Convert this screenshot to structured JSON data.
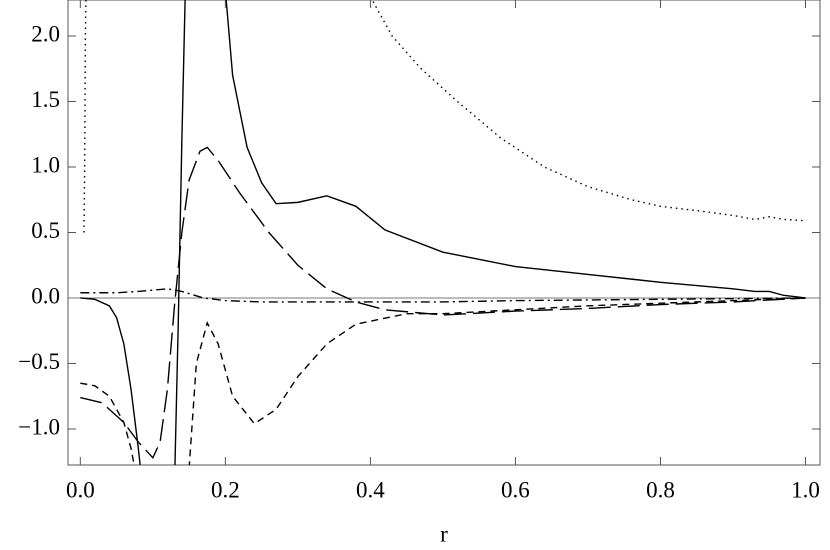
{
  "chart_data": {
    "type": "line",
    "x_label": "r",
    "xlim": [
      -0.017,
      1.02
    ],
    "ylim": [
      -1.275,
      2.275
    ],
    "xticks": [
      {
        "value": 0,
        "label": "0.0"
      },
      {
        "value": 0.2,
        "label": "0.2"
      },
      {
        "value": 0.4,
        "label": "0.4"
      },
      {
        "value": 0.6,
        "label": "0.6"
      },
      {
        "value": 0.8,
        "label": "0.8"
      },
      {
        "value": 1,
        "label": "1.0"
      }
    ],
    "yticks": [
      {
        "value": -1,
        "label": "−1.0"
      },
      {
        "value": -0.5,
        "label": "−0.5"
      },
      {
        "value": 0,
        "label": "0.0"
      },
      {
        "value": 0.5,
        "label": "0.5"
      },
      {
        "value": 1,
        "label": "1.0"
      },
      {
        "value": 1.5,
        "label": "1.5"
      },
      {
        "value": 2,
        "label": "2.0"
      }
    ],
    "series": [
      {
        "color": "#000000",
        "dash": "solid",
        "x": [
          0,
          0.02,
          0.04,
          0.05,
          0.06,
          0.07,
          0.08,
          0.085,
          0.1,
          0.13,
          0.135,
          0.14,
          0.145,
          0.17,
          0.2,
          0.21,
          0.23,
          0.25,
          0.27,
          0.3,
          0.34,
          0.38,
          0.42,
          0.5,
          0.6,
          0.7,
          0.8,
          0.9,
          0.93,
          0.95,
          0.97,
          1.0
        ],
        "values": [
          0,
          -0.01,
          -0.06,
          -0.15,
          -0.35,
          -0.7,
          -1.15,
          -1.4,
          null,
          -1.4,
          -0.2,
          1.2,
          2.4,
          null,
          2.35,
          1.7,
          1.15,
          0.88,
          0.72,
          0.73,
          0.78,
          0.7,
          0.52,
          0.35,
          0.24,
          0.18,
          0.12,
          0.07,
          0.05,
          0.05,
          0.02,
          0
        ]
      },
      {
        "color": "#000000",
        "dash": "longdash",
        "x": [
          0,
          0.03,
          0.06,
          0.08,
          0.1,
          0.11,
          0.12,
          0.13,
          0.14,
          0.15,
          0.165,
          0.175,
          0.19,
          0.22,
          0.26,
          0.3,
          0.34,
          0.38,
          0.42,
          0.5,
          0.6,
          0.7,
          0.8,
          0.9,
          1.0
        ],
        "values": [
          -0.76,
          -0.8,
          -0.95,
          -1.1,
          -1.22,
          -1.1,
          -0.7,
          -0.05,
          0.5,
          0.9,
          1.12,
          1.15,
          1.05,
          0.8,
          0.5,
          0.25,
          0.07,
          -0.03,
          -0.09,
          -0.13,
          -0.1,
          -0.08,
          -0.05,
          -0.03,
          0
        ]
      },
      {
        "color": "#000000",
        "dash": "shortdash",
        "x": [
          0,
          0.02,
          0.04,
          0.06,
          0.07,
          0.075,
          0.1,
          0.15,
          0.16,
          0.175,
          0.19,
          0.21,
          0.24,
          0.27,
          0.3,
          0.34,
          0.38,
          0.45,
          0.5,
          0.6,
          0.7,
          0.8,
          0.9,
          1.0
        ],
        "values": [
          -0.65,
          -0.67,
          -0.75,
          -0.95,
          -1.15,
          -1.3,
          null,
          -1.3,
          -0.5,
          -0.19,
          -0.35,
          -0.75,
          -0.96,
          -0.85,
          -0.6,
          -0.35,
          -0.2,
          -0.12,
          -0.12,
          -0.09,
          -0.06,
          -0.04,
          -0.02,
          0
        ]
      },
      {
        "color": "#000000",
        "dash": "dashdot",
        "x": [
          0,
          0.05,
          0.08,
          0.1,
          0.12,
          0.14,
          0.17,
          0.2,
          0.25,
          0.3,
          0.4,
          0.5,
          0.6,
          0.8,
          1.0
        ],
        "values": [
          0.04,
          0.04,
          0.05,
          0.06,
          0.07,
          0.05,
          0,
          -0.02,
          -0.03,
          -0.03,
          -0.03,
          -0.03,
          -0.02,
          -0.01,
          0
        ]
      },
      {
        "color": "#000000",
        "dash": "dotted",
        "x": [
          0.005,
          0.006,
          0.007,
          0.008,
          0.2,
          0.4,
          0.43,
          0.47,
          0.52,
          0.58,
          0.64,
          0.7,
          0.76,
          0.8,
          0.86,
          0.9,
          0.93,
          0.95,
          0.97,
          1.0
        ],
        "values": [
          0.5,
          1.0,
          2.0,
          2.4,
          null,
          2.3,
          2.0,
          1.75,
          1.5,
          1.22,
          1.0,
          0.85,
          0.75,
          0.7,
          0.66,
          0.63,
          0.6,
          0.62,
          0.6,
          0.59
        ]
      }
    ]
  }
}
